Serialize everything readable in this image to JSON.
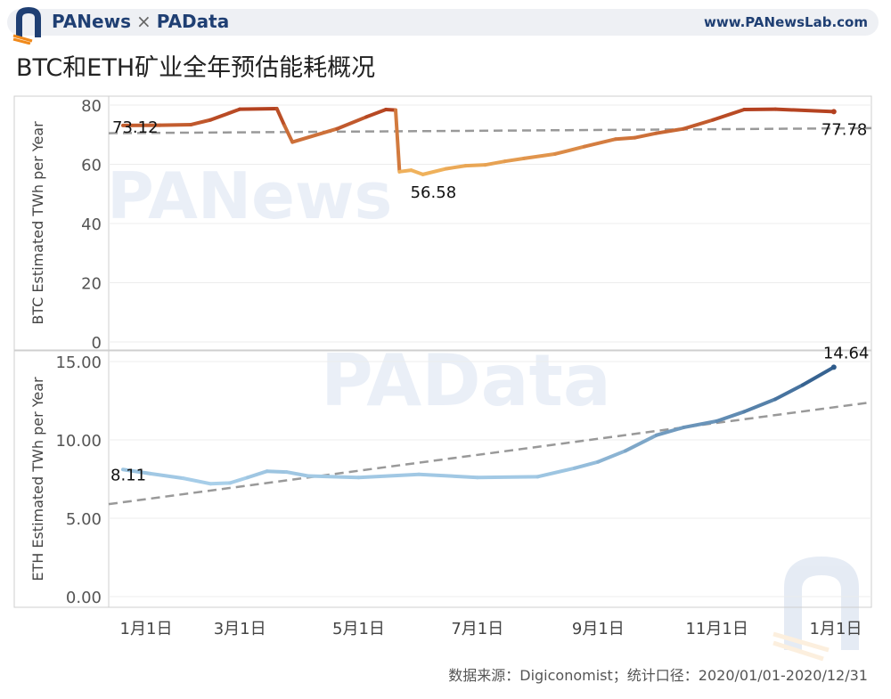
{
  "header": {
    "brand_left": "PANews",
    "brand_times": "×",
    "brand_right": "PAData",
    "site": "www.PANewsLab.com"
  },
  "title": "BTC和ETH矿业全年预估能耗概况",
  "source": "数据来源：Digiconomist；统计口径：2020/01/01-2020/12/31",
  "watermarks": [
    "PANews",
    "PAData"
  ],
  "colors": {
    "btc_start": "#b3401f",
    "btc_low": "#f2b65e",
    "eth_light": "#a9d0ea",
    "eth_dark": "#2d5a8a",
    "trend": "#999999",
    "grid": "#ececec",
    "axis": "#cfcfcf"
  },
  "chart_data": [
    {
      "type": "line",
      "ylabel": "BTC Estimated TWh per Year",
      "ylim": [
        0,
        80
      ],
      "yticks": [
        "0",
        "20",
        "40",
        "60",
        "80"
      ],
      "x_start": "2020-01-01",
      "x_end": "2021-01-01",
      "points": [
        [
          "2020-01-01",
          73.12
        ],
        [
          "2020-01-20",
          73.2
        ],
        [
          "2020-02-05",
          73.4
        ],
        [
          "2020-02-15",
          75
        ],
        [
          "2020-03-01",
          78.6
        ],
        [
          "2020-03-20",
          78.8
        ],
        [
          "2020-03-24",
          73
        ],
        [
          "2020-03-28",
          67.5
        ],
        [
          "2020-04-20",
          72
        ],
        [
          "2020-05-05",
          76
        ],
        [
          "2020-05-15",
          78.5
        ],
        [
          "2020-05-20",
          78.3
        ],
        [
          "2020-05-22",
          57.5
        ],
        [
          "2020-05-28",
          58
        ],
        [
          "2020-06-03",
          56.58
        ],
        [
          "2020-06-15",
          58.5
        ],
        [
          "2020-06-25",
          59.5
        ],
        [
          "2020-07-05",
          59.8
        ],
        [
          "2020-07-15",
          61
        ],
        [
          "2020-07-25",
          62
        ],
        [
          "2020-08-10",
          63.5
        ],
        [
          "2020-08-25",
          66
        ],
        [
          "2020-09-10",
          68.5
        ],
        [
          "2020-09-20",
          69
        ],
        [
          "2020-10-01",
          70.5
        ],
        [
          "2020-10-15",
          72
        ],
        [
          "2020-10-30",
          75
        ],
        [
          "2020-11-15",
          78.5
        ],
        [
          "2020-12-01",
          78.6
        ],
        [
          "2020-12-31",
          77.78
        ]
      ],
      "trend": [
        [
          0,
          70.5
        ],
        [
          1,
          72.2
        ]
      ],
      "labels": [
        {
          "text": "73.12",
          "x": "2020-01-01",
          "y": 73.12
        },
        {
          "text": "56.58",
          "x": "2020-06-03",
          "y": 56.58
        },
        {
          "text": "77.78",
          "x": "2020-12-31",
          "y": 77.78
        }
      ]
    },
    {
      "type": "line",
      "ylabel": "ETH Estimated TWh per Year",
      "ylim": [
        0,
        15
      ],
      "yticks": [
        "0.00",
        "5.00",
        "10.00",
        "15.00"
      ],
      "xticks": [
        "1月1日",
        "3月1日",
        "5月1日",
        "7月1日",
        "9月1日",
        "11月1日",
        "1月1日"
      ],
      "x_start": "2020-01-01",
      "x_end": "2021-01-01",
      "points": [
        [
          "2020-01-01",
          8.11
        ],
        [
          "2020-01-15",
          7.85
        ],
        [
          "2020-02-01",
          7.55
        ],
        [
          "2020-02-15",
          7.2
        ],
        [
          "2020-02-25",
          7.25
        ],
        [
          "2020-03-05",
          7.6
        ],
        [
          "2020-03-15",
          8.0
        ],
        [
          "2020-03-25",
          7.95
        ],
        [
          "2020-04-05",
          7.7
        ],
        [
          "2020-05-01",
          7.6
        ],
        [
          "2020-06-01",
          7.8
        ],
        [
          "2020-07-01",
          7.6
        ],
        [
          "2020-08-01",
          7.65
        ],
        [
          "2020-08-20",
          8.2
        ],
        [
          "2020-09-01",
          8.6
        ],
        [
          "2020-09-15",
          9.3
        ],
        [
          "2020-10-01",
          10.3
        ],
        [
          "2020-10-15",
          10.8
        ],
        [
          "2020-11-01",
          11.2
        ],
        [
          "2020-11-15",
          11.8
        ],
        [
          "2020-12-01",
          12.6
        ],
        [
          "2020-12-15",
          13.5
        ],
        [
          "2020-12-31",
          14.64
        ]
      ],
      "trend": [
        [
          0,
          5.9
        ],
        [
          1,
          12.4
        ]
      ],
      "labels": [
        {
          "text": "8.11",
          "x": "2020-01-01",
          "y": 8.11
        },
        {
          "text": "14.64",
          "x": "2020-12-31",
          "y": 14.64
        }
      ]
    }
  ]
}
